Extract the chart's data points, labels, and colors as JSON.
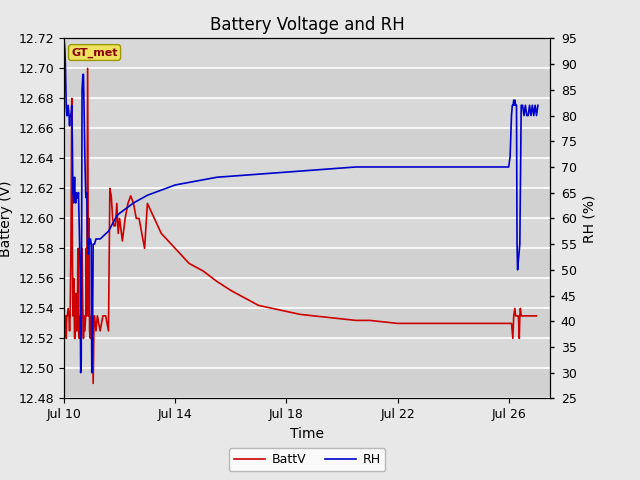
{
  "title": "Battery Voltage and RH",
  "xlabel": "Time",
  "ylabel_left": "Battery (V)",
  "ylabel_right": "RH (%)",
  "legend_label": "GT_met",
  "ylim_left": [
    12.48,
    12.72
  ],
  "ylim_right": [
    25,
    95
  ],
  "yticks_left": [
    12.48,
    12.5,
    12.52,
    12.54,
    12.56,
    12.58,
    12.6,
    12.62,
    12.64,
    12.66,
    12.68,
    12.7,
    12.72
  ],
  "yticks_right": [
    25,
    30,
    35,
    40,
    45,
    50,
    55,
    60,
    65,
    70,
    75,
    80,
    85,
    90,
    95
  ],
  "bg_color": "#e8e8e8",
  "plot_bg_color": "#d8d8d8",
  "grid_color": "#ffffff",
  "line_color_batt": "#cc0000",
  "line_color_rh": "#0000cc",
  "title_fontsize": 12,
  "axis_fontsize": 10,
  "tick_fontsize": 9,
  "batt_times": [
    0.0,
    0.05,
    0.08,
    0.1,
    0.12,
    0.15,
    0.18,
    0.2,
    0.22,
    0.25,
    0.28,
    0.3,
    0.32,
    0.35,
    0.38,
    0.4,
    0.42,
    0.45,
    0.48,
    0.5,
    0.52,
    0.55,
    0.58,
    0.6,
    0.62,
    0.65,
    0.68,
    0.7,
    0.72,
    0.75,
    0.78,
    0.8,
    0.82,
    0.85,
    0.88,
    0.9,
    0.92,
    0.95,
    0.98,
    1.0,
    1.02,
    1.05,
    1.08,
    1.1,
    1.15,
    1.2,
    1.3,
    1.4,
    1.5,
    1.6,
    1.65,
    1.7,
    1.75,
    1.8,
    1.85,
    1.9,
    1.95,
    2.0,
    2.1,
    2.2,
    2.3,
    2.4,
    2.5,
    2.6,
    2.7,
    2.8,
    2.9,
    3.0,
    3.5,
    4.0,
    4.5,
    5.0,
    5.5,
    6.0,
    6.5,
    7.0,
    7.5,
    8.0,
    8.5,
    9.0,
    9.5,
    10.0,
    10.5,
    11.0,
    11.5,
    12.0,
    12.5,
    13.0,
    13.5,
    14.0,
    14.5,
    15.0,
    15.5,
    16.0,
    16.1,
    16.15,
    16.18,
    16.22,
    16.25,
    16.28,
    16.3,
    16.32,
    16.35,
    16.38,
    16.4,
    16.42,
    16.45,
    16.48,
    16.5,
    16.55,
    16.6,
    16.65,
    16.7,
    16.8,
    16.9,
    17.0
  ],
  "batt_vals": [
    12.535,
    12.535,
    12.52,
    12.535,
    12.535,
    12.54,
    12.535,
    12.525,
    12.535,
    12.58,
    12.68,
    12.58,
    12.535,
    12.56,
    12.52,
    12.52,
    12.55,
    12.525,
    12.535,
    12.58,
    12.525,
    12.52,
    12.535,
    12.525,
    12.535,
    12.58,
    12.535,
    12.52,
    12.535,
    12.525,
    12.535,
    12.58,
    12.535,
    12.7,
    12.535,
    12.6,
    12.525,
    12.52,
    12.535,
    12.525,
    12.535,
    12.49,
    12.535,
    12.535,
    12.525,
    12.535,
    12.525,
    12.535,
    12.535,
    12.525,
    12.62,
    12.615,
    12.6,
    12.595,
    12.595,
    12.61,
    12.59,
    12.6,
    12.585,
    12.6,
    12.61,
    12.615,
    12.61,
    12.6,
    12.6,
    12.59,
    12.58,
    12.61,
    12.59,
    12.58,
    12.57,
    12.565,
    12.558,
    12.552,
    12.547,
    12.542,
    12.54,
    12.538,
    12.536,
    12.535,
    12.534,
    12.533,
    12.532,
    12.532,
    12.531,
    12.53,
    12.53,
    12.53,
    12.53,
    12.53,
    12.53,
    12.53,
    12.53,
    12.53,
    12.53,
    12.52,
    12.535,
    12.54,
    12.535,
    12.535,
    12.535,
    12.535,
    12.535,
    12.52,
    12.535,
    12.54,
    12.535,
    12.535,
    12.535,
    12.535,
    12.535,
    12.535,
    12.535,
    12.535,
    12.535,
    12.535
  ],
  "rh_times": [
    0.0,
    0.03,
    0.05,
    0.08,
    0.1,
    0.12,
    0.15,
    0.18,
    0.2,
    0.22,
    0.25,
    0.28,
    0.3,
    0.32,
    0.35,
    0.38,
    0.4,
    0.42,
    0.45,
    0.48,
    0.5,
    0.52,
    0.55,
    0.58,
    0.6,
    0.62,
    0.65,
    0.68,
    0.7,
    0.72,
    0.75,
    0.78,
    0.8,
    0.82,
    0.85,
    0.88,
    0.9,
    0.92,
    0.95,
    0.98,
    1.0,
    1.02,
    1.05,
    1.08,
    1.1,
    1.15,
    1.2,
    1.3,
    1.4,
    1.5,
    1.6,
    1.65,
    1.7,
    1.8,
    1.9,
    2.0,
    2.5,
    3.0,
    3.5,
    4.0,
    4.5,
    5.0,
    5.5,
    6.0,
    6.5,
    7.0,
    7.5,
    8.0,
    8.5,
    9.0,
    9.5,
    10.0,
    10.5,
    11.0,
    11.5,
    12.0,
    12.5,
    13.0,
    13.5,
    14.0,
    14.5,
    15.0,
    15.5,
    16.0,
    16.05,
    16.1,
    16.13,
    16.16,
    16.18,
    16.2,
    16.22,
    16.25,
    16.28,
    16.3,
    16.32,
    16.35,
    16.4,
    16.45,
    16.5,
    16.55,
    16.6,
    16.65,
    16.7,
    16.75,
    16.8,
    16.85,
    16.9,
    16.95,
    17.0,
    17.05
  ],
  "rh_vals": [
    95,
    93,
    90,
    82,
    80,
    80,
    82,
    80,
    78,
    80,
    80,
    82,
    75,
    65,
    63,
    68,
    64,
    63,
    65,
    64,
    64,
    65,
    58,
    50,
    30,
    32,
    85,
    88,
    88,
    82,
    72,
    65,
    64,
    65,
    55,
    53,
    56,
    55,
    56,
    55,
    30,
    33,
    55,
    55,
    55,
    56,
    56,
    56,
    56.5,
    57,
    57.5,
    58,
    58.5,
    59.5,
    60.5,
    61,
    63,
    64.5,
    65.5,
    66.5,
    67,
    67.5,
    68,
    68.2,
    68.4,
    68.6,
    68.8,
    69,
    69.2,
    69.4,
    69.6,
    69.8,
    70,
    70,
    70,
    70,
    70,
    70,
    70,
    70,
    70,
    70,
    70,
    70,
    72,
    80,
    82,
    82,
    83,
    82,
    83,
    82,
    82,
    55,
    50,
    52,
    55,
    82,
    82,
    80,
    82,
    80,
    80,
    82,
    80,
    82,
    80,
    82,
    80,
    82
  ],
  "x_ticks": [
    0,
    4,
    8,
    12,
    16
  ],
  "x_labels": [
    "Jul 10",
    "Jul 14",
    "Jul 18",
    "Jul 22",
    "Jul 26"
  ],
  "x_lim": [
    0,
    17.5
  ]
}
